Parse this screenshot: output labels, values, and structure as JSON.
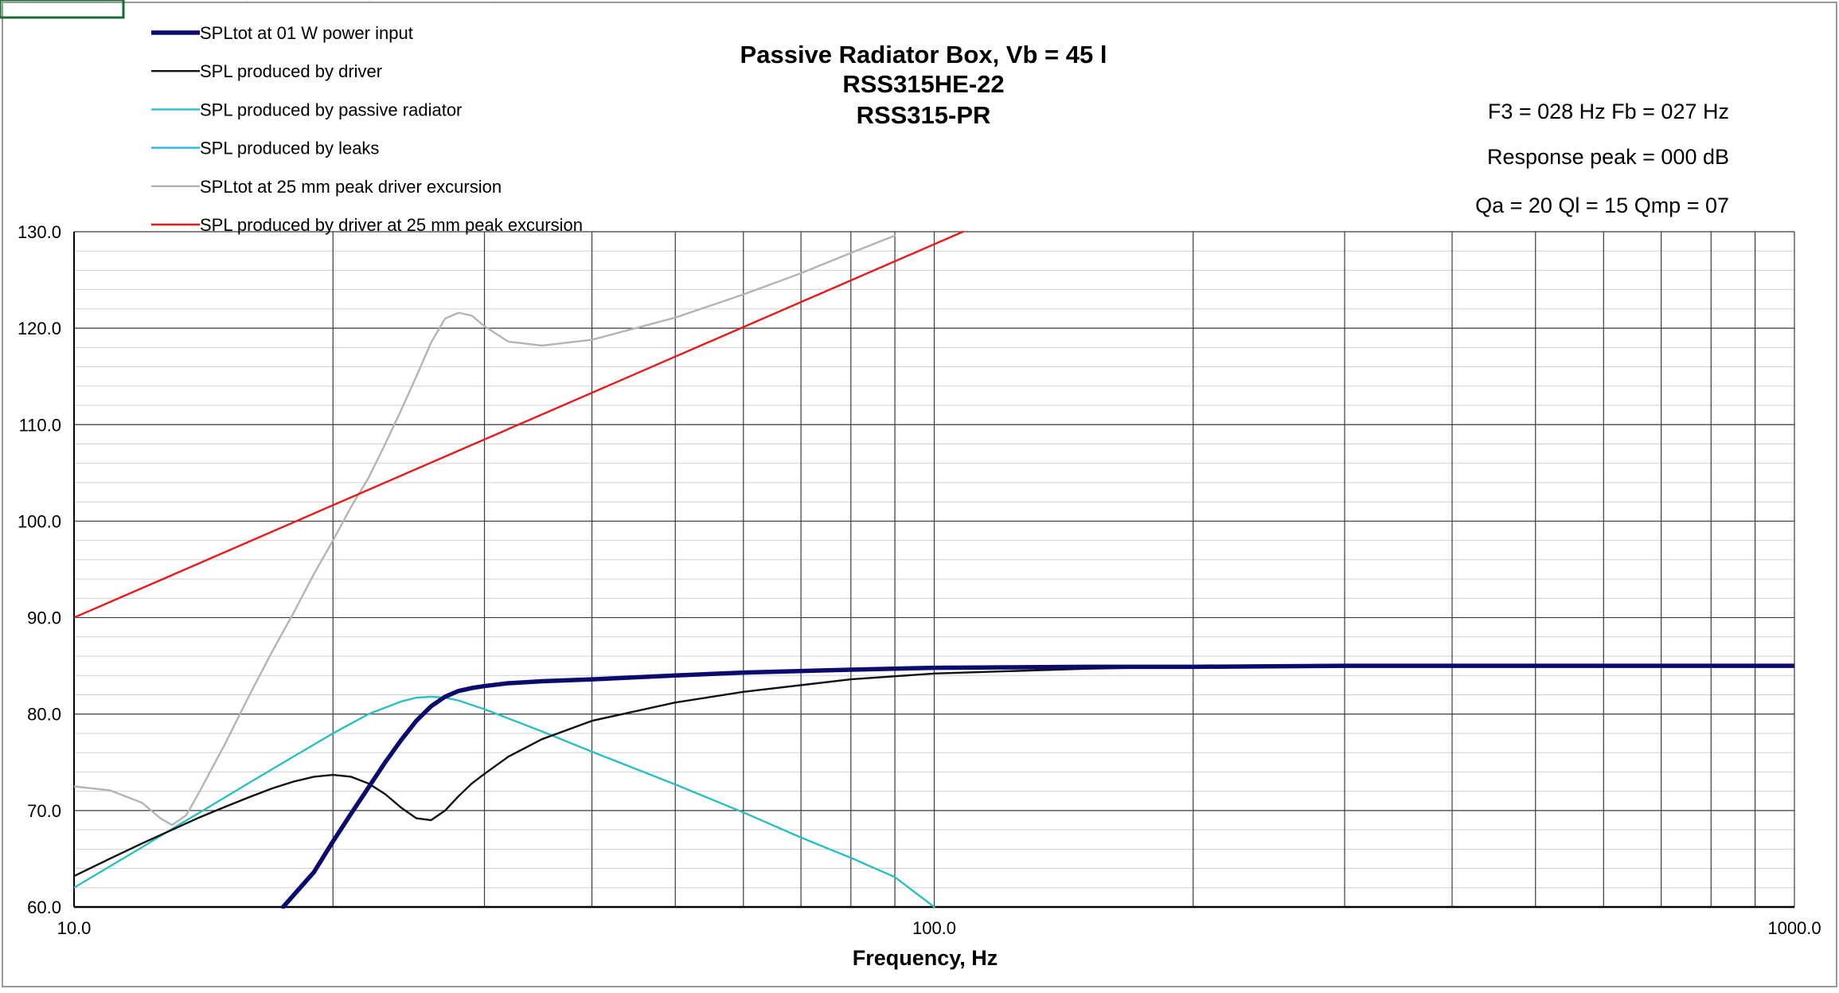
{
  "chart_data": {
    "type": "line",
    "title": "Passive Radiator Box, Vb = 45 l",
    "subtitle_lines": [
      "RSS315HE-22",
      "RSS315-PR"
    ],
    "xlabel": "Frequency, Hz",
    "ylabel": "",
    "x_scale": "log",
    "xlim": [
      10,
      1000
    ],
    "ylim": [
      60,
      130
    ],
    "x_ticks": [
      "10.0",
      "100.0",
      "1000.0"
    ],
    "y_ticks": [
      "60.0",
      "70.0",
      "80.0",
      "90.0",
      "100.0",
      "110.0",
      "120.0",
      "130.0"
    ],
    "grid": true,
    "legend_position": "top-left",
    "annotations": [
      "F3 = 028 Hz  Fb = 027 Hz",
      "Response peak = 000 dB",
      "Qa = 20  Ql = 15  Qmp = 07"
    ],
    "series": [
      {
        "name": "SPLtot at 01 W power input",
        "color": "#0b0b6e",
        "x": [
          17.5,
          19,
          20,
          21,
          22,
          23,
          24,
          25,
          26,
          27,
          28,
          29,
          30,
          32,
          35,
          40,
          50,
          60,
          80,
          100,
          150,
          200,
          300,
          500,
          1000
        ],
        "y": [
          60,
          63.6,
          66.8,
          69.7,
          72.4,
          75.0,
          77.3,
          79.3,
          80.8,
          81.8,
          82.4,
          82.7,
          82.9,
          83.2,
          83.4,
          83.6,
          84.0,
          84.3,
          84.6,
          84.8,
          84.9,
          84.9,
          85.0,
          85.0,
          85.0
        ]
      },
      {
        "name": "SPL produced by driver",
        "color": "#111111",
        "x": [
          10,
          11,
          12,
          13,
          14,
          15,
          16,
          17,
          18,
          19,
          20,
          21,
          22,
          23,
          24,
          25,
          26,
          27,
          28,
          29,
          30,
          32,
          35,
          40,
          50,
          60,
          80,
          100,
          150,
          200,
          300,
          500,
          1000
        ],
        "y": [
          63.2,
          65.0,
          66.6,
          68.0,
          69.3,
          70.4,
          71.4,
          72.3,
          73.0,
          73.5,
          73.7,
          73.5,
          72.8,
          71.7,
          70.3,
          69.2,
          69.0,
          70.0,
          71.5,
          72.8,
          73.8,
          75.6,
          77.4,
          79.3,
          81.2,
          82.3,
          83.6,
          84.2,
          84.7,
          84.9,
          85.0,
          85.0,
          85.0
        ]
      },
      {
        "name": "SPL produced by passive radiator",
        "color": "#2bbfbf",
        "x": [
          10,
          11,
          12,
          13,
          14,
          15,
          16,
          18,
          20,
          22,
          24,
          25,
          26,
          27,
          28,
          30,
          35,
          40,
          50,
          60,
          70,
          80,
          90,
          100
        ],
        "y": [
          62.0,
          64.2,
          66.2,
          68.1,
          69.8,
          71.4,
          72.9,
          75.6,
          78.0,
          80.0,
          81.3,
          81.7,
          81.8,
          81.7,
          81.4,
          80.5,
          78.2,
          76.1,
          72.7,
          69.8,
          67.2,
          65.1,
          63.1,
          60.0
        ]
      },
      {
        "name": "SPL produced by leaks",
        "color": "#29b6e8",
        "x": [],
        "y": []
      },
      {
        "name": "SPLtot at 25 mm peak driver excursion",
        "color": "#b4b4b4",
        "x": [
          10,
          11,
          12,
          12.6,
          13,
          13.5,
          14,
          15,
          16,
          17,
          18,
          19,
          20,
          21,
          22,
          23,
          24,
          25,
          26,
          27,
          28,
          29,
          30,
          32,
          35,
          40,
          50,
          60,
          70,
          80,
          90
        ],
        "y": [
          72.5,
          72.1,
          70.8,
          69.2,
          68.5,
          69.5,
          72.0,
          77.0,
          82.0,
          86.5,
          90.5,
          94.5,
          98.0,
          101.5,
          104.5,
          108.0,
          111.5,
          115.0,
          118.5,
          121.0,
          121.6,
          121.3,
          120.2,
          118.6,
          118.2,
          118.8,
          121.1,
          123.5,
          125.7,
          127.8,
          129.6
        ]
      },
      {
        "name": "SPL produced by driver at 25 mm peak excursion",
        "color": "#e8191a",
        "x": [
          10,
          108
        ],
        "y": [
          90.0,
          130.0
        ]
      }
    ]
  }
}
